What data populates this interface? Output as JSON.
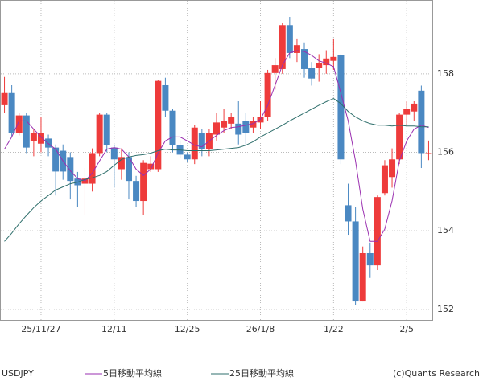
{
  "chart_data": {
    "type": "candlestick",
    "symbol": "USDJPY",
    "credit": "(c)Quants Research",
    "categories": [
      null,
      null,
      null,
      null,
      null,
      "25/11/27",
      null,
      null,
      null,
      null,
      null,
      null,
      null,
      null,
      null,
      "12/11",
      null,
      null,
      null,
      null,
      null,
      null,
      null,
      null,
      null,
      "12/25",
      null,
      null,
      null,
      null,
      null,
      null,
      null,
      null,
      null,
      "26/1/8",
      null,
      null,
      null,
      null,
      null,
      null,
      null,
      null,
      null,
      "1/22",
      null,
      null,
      null,
      null,
      null,
      null,
      null,
      null,
      null,
      "2/5",
      null,
      null,
      null
    ],
    "open": [
      157.2,
      157.51,
      156.49,
      156.94,
      156.29,
      156.22,
      156.35,
      156.12,
      156.04,
      155.88,
      155.33,
      155.2,
      155.2,
      155.98,
      156.96,
      156.12,
      155.57,
      155.88,
      155.27,
      154.76,
      155.57,
      155.57,
      157.71,
      157.06,
      156.18,
      155.94,
      155.82,
      156.49,
      156.08,
      156.45,
      156.63,
      156.73,
      156.73,
      156.8,
      156.63,
      156.76,
      156.9,
      158.02,
      158.12,
      159.24,
      158.53,
      158.63,
      158.16,
      158.16,
      158.22,
      158.33,
      158.47,
      154.65,
      154.24,
      152.2,
      153.43,
      153.12,
      154.96,
      155.37,
      155.82,
      156.96,
      157.04,
      157.57,
      155.96
    ],
    "high": [
      157.92,
      157.71,
      157.0,
      157.0,
      156.6,
      156.9,
      156.45,
      156.2,
      156.2,
      156.0,
      155.5,
      155.6,
      156.1,
      157.0,
      157.0,
      156.2,
      156.1,
      156.0,
      155.4,
      155.8,
      155.9,
      157.85,
      157.9,
      157.1,
      156.3,
      156.0,
      156.7,
      156.6,
      156.6,
      157.0,
      157.1,
      157.0,
      157.3,
      157.0,
      156.9,
      157.3,
      158.1,
      158.4,
      159.3,
      159.45,
      158.9,
      158.8,
      158.3,
      158.5,
      158.6,
      158.9,
      158.5,
      155.2,
      154.6,
      153.6,
      153.7,
      154.9,
      155.8,
      156.1,
      157.0,
      157.3,
      157.3,
      157.7,
      156.3
    ],
    "low": [
      157.0,
      156.39,
      156.43,
      155.98,
      155.9,
      156.0,
      155.9,
      154.9,
      155.3,
      154.8,
      154.6,
      154.39,
      155.0,
      155.9,
      156.0,
      155.1,
      155.3,
      154.8,
      154.6,
      154.4,
      155.5,
      155.5,
      156.9,
      156.0,
      155.85,
      155.75,
      155.7,
      155.9,
      155.9,
      156.3,
      156.5,
      156.6,
      156.2,
      156.2,
      156.5,
      156.6,
      156.8,
      157.6,
      158.0,
      158.4,
      158.3,
      157.9,
      157.7,
      157.8,
      158.0,
      158.1,
      155.7,
      153.9,
      152.1,
      152.2,
      152.8,
      153.0,
      154.9,
      155.1,
      155.7,
      156.7,
      156.8,
      155.6,
      155.8
    ],
    "close": [
      157.51,
      156.49,
      156.94,
      156.12,
      156.49,
      156.49,
      156.12,
      155.51,
      155.51,
      155.27,
      155.16,
      155.33,
      155.98,
      156.96,
      156.18,
      155.82,
      155.88,
      155.27,
      154.76,
      155.73,
      155.71,
      157.82,
      157.06,
      156.18,
      155.94,
      155.82,
      156.63,
      156.08,
      156.49,
      156.76,
      156.8,
      156.9,
      156.45,
      156.49,
      156.8,
      156.9,
      158.02,
      158.22,
      159.24,
      158.53,
      158.73,
      158.12,
      157.88,
      158.27,
      158.39,
      158.43,
      155.82,
      154.24,
      152.2,
      153.43,
      153.12,
      154.86,
      155.67,
      155.82,
      156.96,
      157.1,
      157.24,
      155.98,
      155.98
    ],
    "up_color": "#ee3b3b",
    "down_color": "#4a88c2",
    "series": [
      {
        "name": "5日移動平均線",
        "color": "#9a2fb0",
        "values": [
          156.08,
          156.39,
          156.8,
          156.8,
          156.59,
          156.39,
          156.22,
          156.08,
          155.78,
          155.53,
          155.33,
          155.27,
          155.47,
          155.78,
          156.08,
          156.12,
          156.08,
          155.88,
          155.57,
          155.41,
          155.57,
          155.98,
          156.29,
          156.39,
          156.39,
          156.29,
          156.18,
          156.14,
          156.29,
          156.43,
          156.55,
          156.63,
          156.65,
          156.69,
          156.73,
          156.84,
          157.2,
          157.71,
          158.22,
          158.53,
          158.59,
          158.57,
          158.47,
          158.33,
          158.27,
          158.18,
          157.51,
          156.8,
          155.78,
          154.55,
          153.73,
          153.73,
          154.04,
          154.76,
          155.78,
          156.29,
          156.59,
          156.69,
          156.63
        ]
      },
      {
        "name": "25日移動平均線",
        "color": "#2f6f6c",
        "values": [
          153.73,
          153.94,
          154.18,
          154.39,
          154.59,
          154.76,
          154.9,
          155.04,
          155.12,
          155.2,
          155.24,
          155.31,
          155.35,
          155.41,
          155.51,
          155.67,
          155.82,
          155.88,
          155.92,
          155.94,
          155.98,
          156.04,
          156.08,
          156.06,
          156.06,
          156.04,
          156.04,
          156.04,
          156.04,
          156.06,
          156.08,
          156.1,
          156.12,
          156.18,
          156.27,
          156.39,
          156.49,
          156.59,
          156.69,
          156.8,
          156.9,
          157.0,
          157.1,
          157.2,
          157.29,
          157.37,
          157.24,
          157.04,
          156.9,
          156.8,
          156.73,
          156.69,
          156.69,
          156.67,
          156.69,
          156.67,
          156.67,
          156.65,
          156.65
        ]
      }
    ],
    "ylim": [
      151.73,
      159.86
    ],
    "yticks": [
      152,
      154,
      156,
      158
    ],
    "grid": true
  }
}
